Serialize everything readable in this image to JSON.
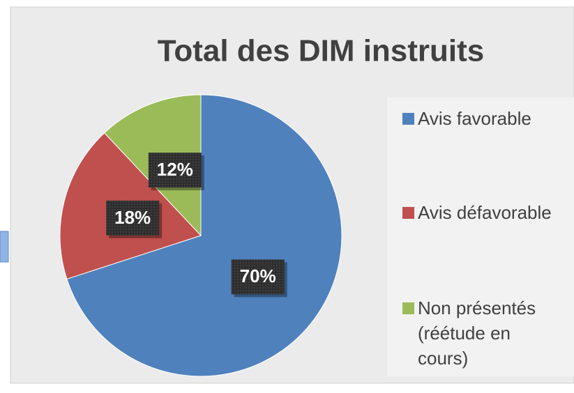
{
  "chart_data": {
    "type": "pie",
    "title": "Total des DIM instruits",
    "categories": [
      "Avis favorable",
      "Avis défavorable",
      "Non présentés (réétude en cours)"
    ],
    "values": [
      70,
      18,
      12
    ],
    "value_labels": [
      "70%",
      "18%",
      "12%"
    ],
    "colors": [
      "#4f81bd",
      "#c0504d",
      "#9bbb59"
    ]
  }
}
